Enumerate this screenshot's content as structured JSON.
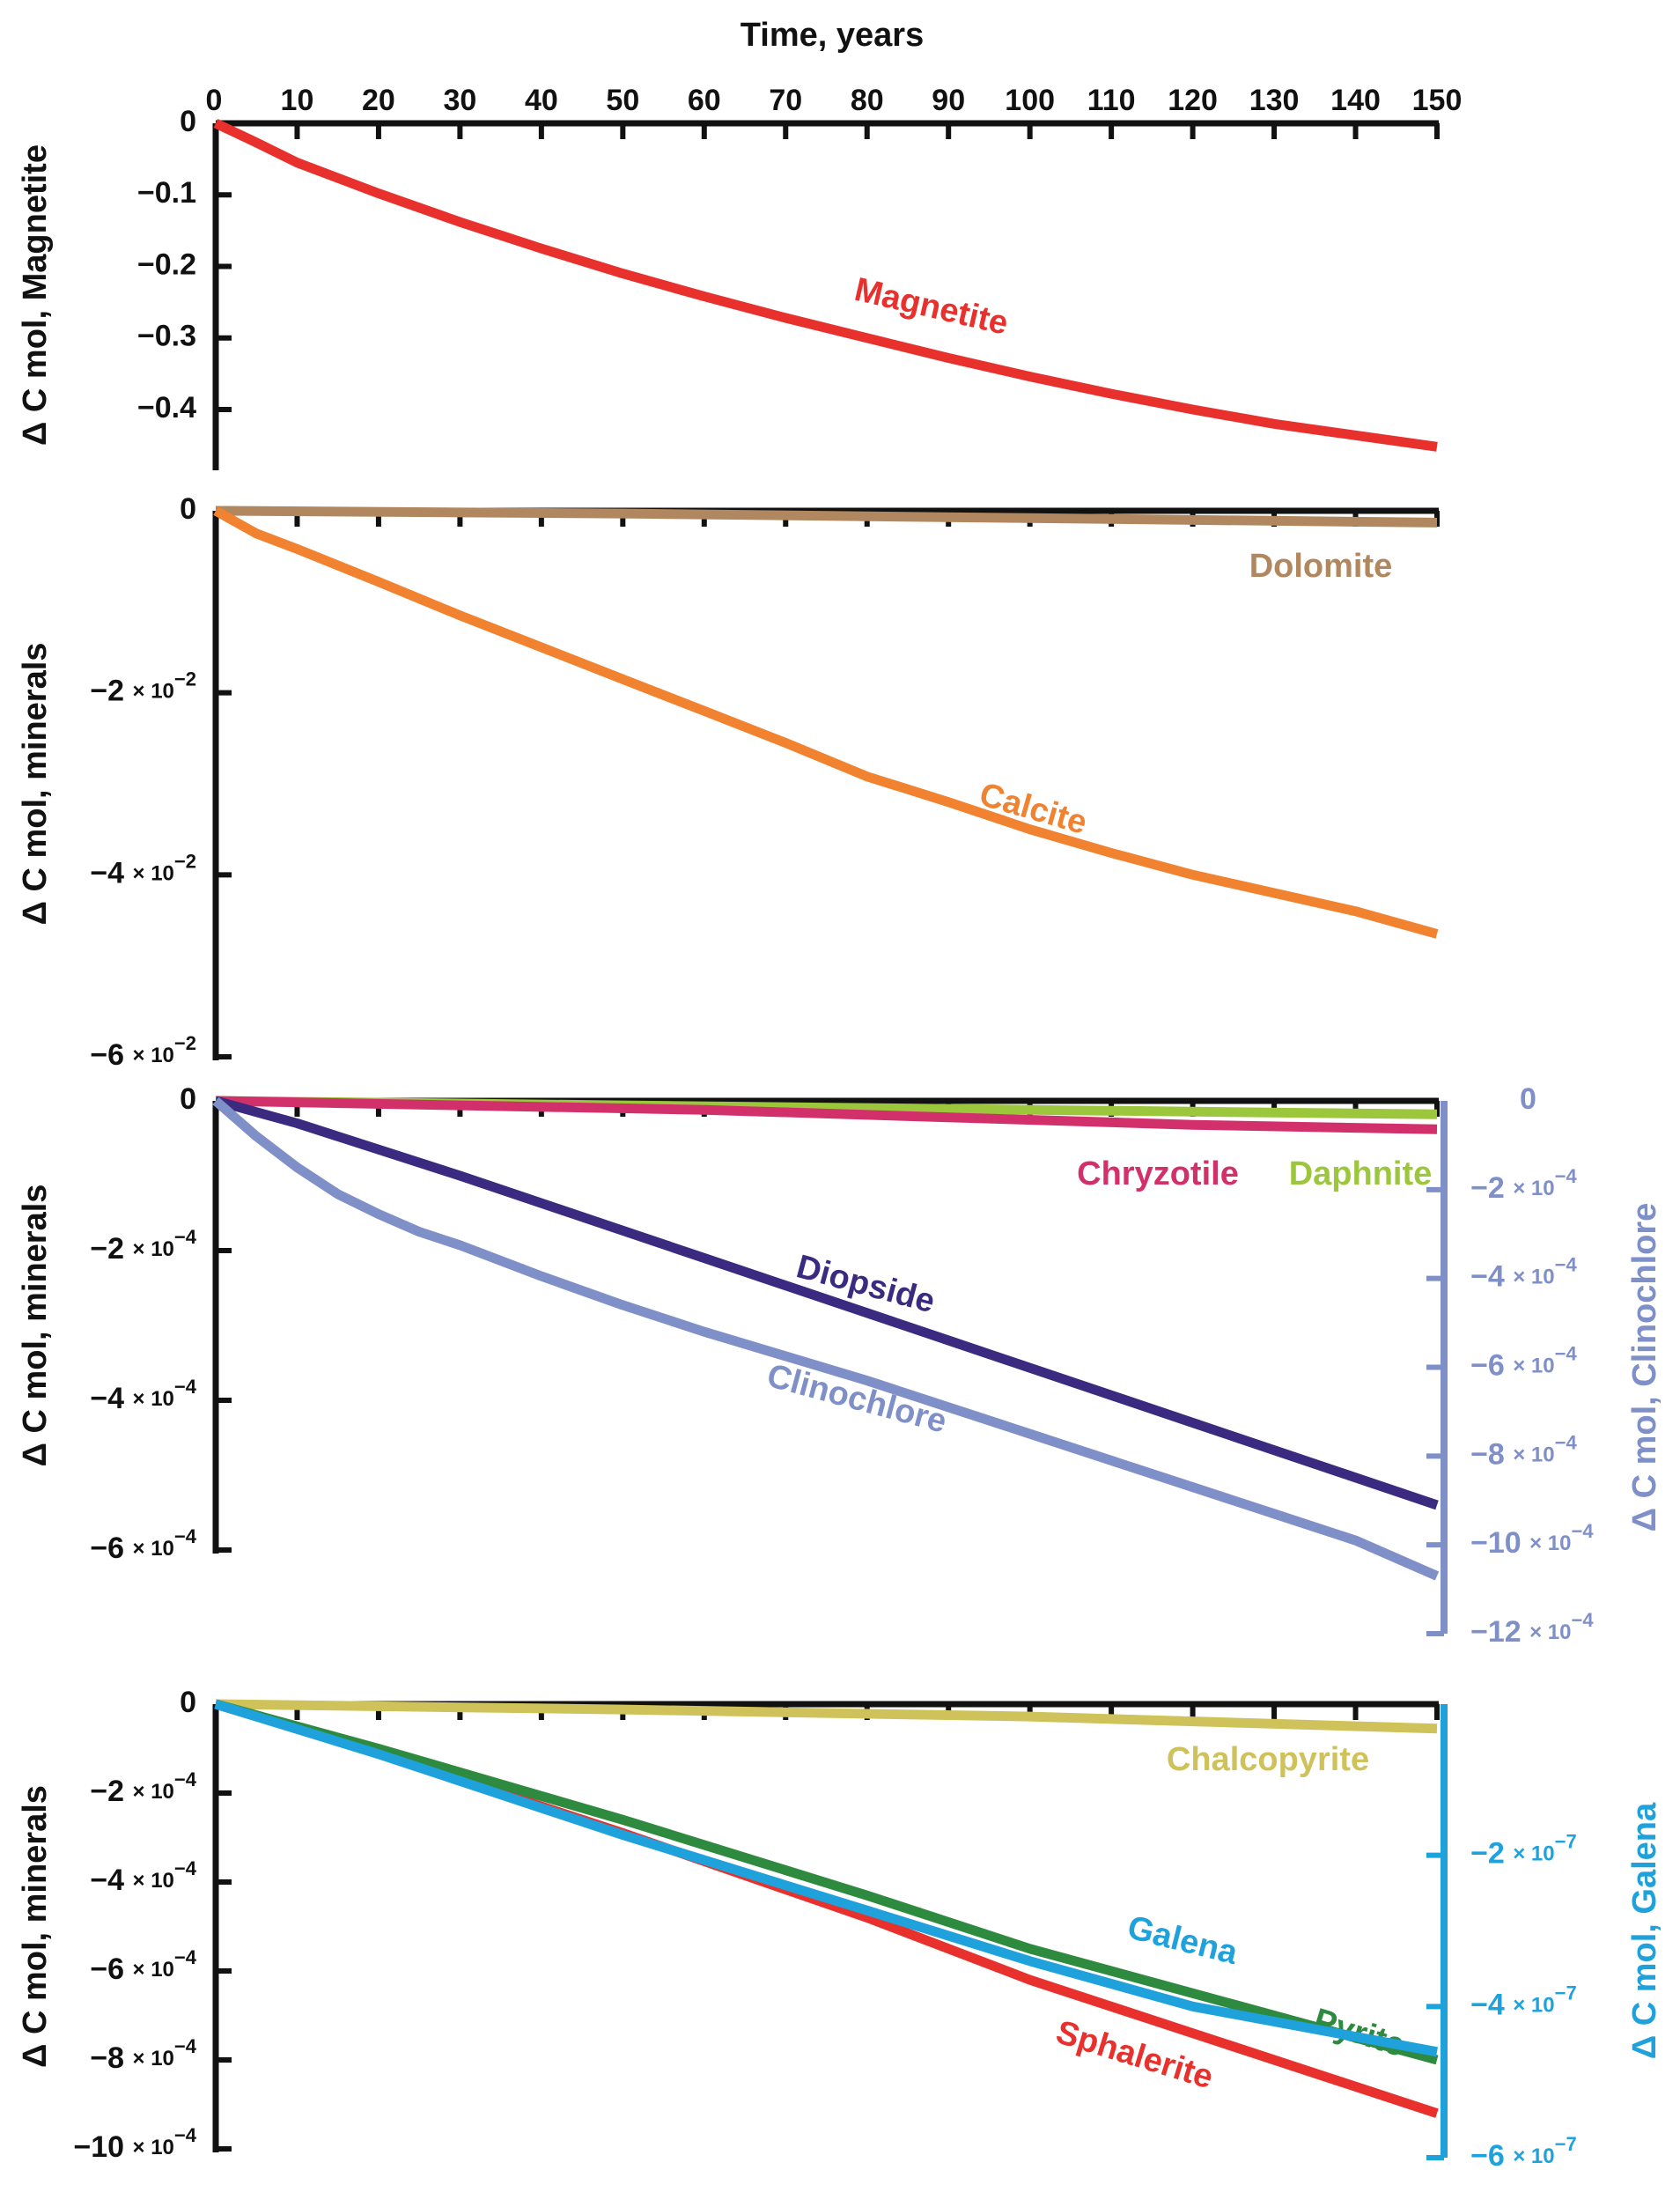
{
  "chart_data": [
    {
      "id": "p1",
      "type": "line",
      "xlabel": "Time, years",
      "ylabel": "Δ C mol, Magnetite",
      "xlim": [
        0,
        150
      ],
      "ylim": [
        -0.48,
        0
      ],
      "xticks": [
        0,
        10,
        20,
        30,
        40,
        50,
        60,
        70,
        80,
        90,
        100,
        110,
        120,
        130,
        140,
        150
      ],
      "yticks": [
        0,
        -0.1,
        -0.2,
        -0.3,
        -0.4
      ],
      "ytick_labels": [
        "0",
        "−0.1",
        "−0.2",
        "−0.3",
        "−0.4"
      ],
      "series": [
        {
          "name": "Magnetite",
          "color": "#e8302c",
          "x": [
            0,
            5,
            10,
            20,
            30,
            40,
            50,
            60,
            70,
            80,
            90,
            100,
            110,
            120,
            130,
            140,
            150
          ],
          "y": [
            0,
            -0.027,
            -0.055,
            -0.098,
            -0.138,
            -0.175,
            -0.21,
            -0.242,
            -0.272,
            -0.3,
            -0.328,
            -0.354,
            -0.378,
            -0.4,
            -0.42,
            -0.436,
            -0.452
          ]
        }
      ]
    },
    {
      "id": "p2",
      "type": "line",
      "ylabel": "Δ C mol, minerals",
      "xlim": [
        0,
        150
      ],
      "ylim": [
        -0.06,
        0
      ],
      "yticks": [
        0,
        -0.02,
        -0.04,
        -0.06
      ],
      "ytick_labels": [
        {
          "mant": "0",
          "exp": ""
        },
        {
          "mant": "−2",
          "exp": "−2"
        },
        {
          "mant": "−4",
          "exp": "−2"
        },
        {
          "mant": "−6",
          "exp": "−2"
        }
      ],
      "series": [
        {
          "name": "Dolomite",
          "color": "#b0875e",
          "x": [
            0,
            50,
            100,
            150
          ],
          "y": [
            0,
            -0.0003,
            -0.0008,
            -0.0013
          ]
        },
        {
          "name": "Calcite",
          "color": "#f08230",
          "x": [
            0,
            5,
            10,
            20,
            30,
            40,
            50,
            60,
            70,
            80,
            90,
            100,
            110,
            120,
            130,
            140,
            150
          ],
          "y": [
            0,
            -0.0025,
            -0.0042,
            -0.0078,
            -0.0115,
            -0.015,
            -0.0185,
            -0.022,
            -0.0255,
            -0.0292,
            -0.032,
            -0.035,
            -0.0376,
            -0.04,
            -0.042,
            -0.044,
            -0.0465
          ]
        }
      ]
    },
    {
      "id": "p3",
      "type": "line",
      "ylabel": "Δ C mol, minerals",
      "ylabel_right": "Δ C mol, Clinochlore",
      "xlim": [
        0,
        150
      ],
      "ylim": [
        -0.0006,
        0
      ],
      "yticks": [
        0,
        -0.0002,
        -0.0004,
        -0.0006
      ],
      "ytick_labels": [
        {
          "mant": "0",
          "exp": ""
        },
        {
          "mant": "−2",
          "exp": "−4"
        },
        {
          "mant": "−4",
          "exp": "−4"
        },
        {
          "mant": "−6",
          "exp": "−4"
        }
      ],
      "ylim_right": [
        -0.0012,
        0
      ],
      "yticks_right": [
        0,
        -0.0002,
        -0.0004,
        -0.0006,
        -0.0008,
        -0.001,
        -0.0012
      ],
      "ytick_labels_right": [
        {
          "mant": "0",
          "exp": ""
        },
        {
          "mant": "−2",
          "exp": "−4"
        },
        {
          "mant": "−4",
          "exp": "−4"
        },
        {
          "mant": "−6",
          "exp": "−4"
        },
        {
          "mant": "−8",
          "exp": "−4"
        },
        {
          "mant": "−10",
          "exp": "−4"
        },
        {
          "mant": "−12",
          "exp": "−4"
        }
      ],
      "series": [
        {
          "name": "Daphnite",
          "color": "#9cc63c",
          "axis": "left",
          "x": [
            0,
            50,
            100,
            150
          ],
          "y": [
            0,
            -6e-06,
            -1.2e-05,
            -1.8e-05
          ]
        },
        {
          "name": "Chryzotile",
          "color": "#d1306a",
          "axis": "left",
          "x": [
            0,
            30,
            60,
            90,
            120,
            150
          ],
          "y": [
            0,
            -6e-06,
            -1.2e-05,
            -2.2e-05,
            -3.2e-05,
            -3.8e-05
          ]
        },
        {
          "name": "Diopside",
          "color": "#3a2a80",
          "axis": "left",
          "x": [
            0,
            10,
            30,
            60,
            90,
            120,
            150
          ],
          "y": [
            0,
            -3e-05,
            -0.0001,
            -0.00021,
            -0.00032,
            -0.00043,
            -0.00054
          ]
        },
        {
          "name": "Clinochlore",
          "color": "#7f8fc8",
          "axis": "right",
          "x": [
            0,
            5,
            10,
            15,
            20,
            25,
            30,
            40,
            50,
            60,
            70,
            80,
            90,
            100,
            110,
            120,
            130,
            140,
            150
          ],
          "y": [
            0,
            -8e-05,
            -0.00015,
            -0.00021,
            -0.000255,
            -0.000295,
            -0.000325,
            -0.000395,
            -0.00046,
            -0.00052,
            -0.000575,
            -0.00063,
            -0.00069,
            -0.00075,
            -0.00081,
            -0.00087,
            -0.00093,
            -0.00099,
            -0.00107
          ]
        }
      ],
      "label_positions": [
        "Chryzotile",
        "Daphnite",
        "Diopside",
        "Clinochlore"
      ]
    },
    {
      "id": "p4",
      "type": "line",
      "ylabel": "Δ C mol, minerals",
      "ylabel_right": "Δ C mol, Galena",
      "xlim": [
        0,
        150
      ],
      "ylim": [
        -0.001,
        0
      ],
      "yticks": [
        0,
        -0.0002,
        -0.0004,
        -0.0006,
        -0.0008,
        -0.001
      ],
      "ytick_labels": [
        {
          "mant": "0",
          "exp": ""
        },
        {
          "mant": "−2",
          "exp": "−4"
        },
        {
          "mant": "−4",
          "exp": "−4"
        },
        {
          "mant": "−6",
          "exp": "−4"
        },
        {
          "mant": "−8",
          "exp": "−4"
        },
        {
          "mant": "−10",
          "exp": "−4"
        }
      ],
      "ylim_right": [
        -6e-07,
        0
      ],
      "yticks_right": [
        -2e-07,
        -4e-07,
        -6e-07
      ],
      "ytick_labels_right": [
        {
          "mant": "−2",
          "exp": "−7"
        },
        {
          "mant": "−4",
          "exp": "−7"
        },
        {
          "mant": "−6",
          "exp": "−7"
        }
      ],
      "series": [
        {
          "name": "Chalcopyrite",
          "color": "#cfc25a",
          "axis": "left",
          "x": [
            0,
            50,
            100,
            150
          ],
          "y": [
            0,
            -1.2e-05,
            -2.8e-05,
            -5.5e-05
          ]
        },
        {
          "name": "Sphalerite",
          "color": "#e8302c",
          "axis": "left",
          "x": [
            0,
            20,
            50,
            80,
            100,
            120,
            150
          ],
          "y": [
            0,
            -0.00011,
            -0.00029,
            -0.00048,
            -0.00062,
            -0.00074,
            -0.00092
          ]
        },
        {
          "name": "Pyrite",
          "color": "#2e8a3e",
          "axis": "left",
          "x": [
            0,
            20,
            50,
            80,
            100,
            120,
            150
          ],
          "y": [
            0,
            -0.0001,
            -0.00026,
            -0.00043,
            -0.00055,
            -0.00065,
            -0.0008
          ]
        },
        {
          "name": "Galena",
          "color": "#1fa2dc",
          "axis": "right",
          "x": [
            0,
            20,
            50,
            80,
            100,
            120,
            150
          ],
          "y": [
            0,
            -6.6e-08,
            -1.73e-07,
            -2.73e-07,
            -3.4e-07,
            -4e-07,
            -4.6e-07
          ]
        }
      ]
    }
  ]
}
